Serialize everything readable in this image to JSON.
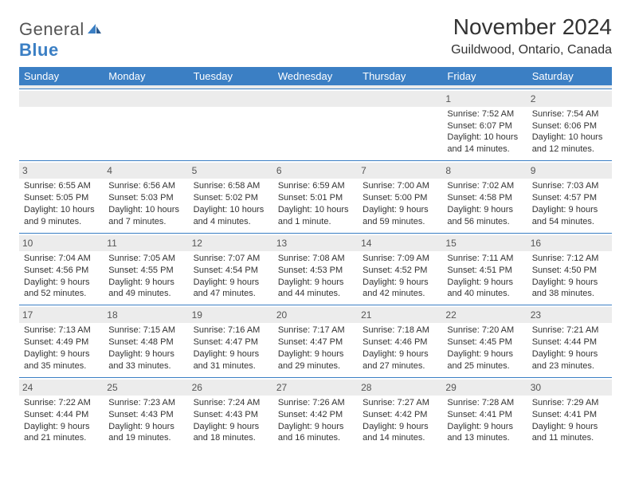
{
  "logo": {
    "general": "General",
    "blue": "Blue"
  },
  "title": "November 2024",
  "location": "Guildwood, Ontario, Canada",
  "colors": {
    "header_bg": "#3b7fc4",
    "header_text": "#ffffff",
    "daynum_bg": "#ececec",
    "border": "#3b7fc4",
    "text": "#333333",
    "background": "#ffffff"
  },
  "dayHeaders": [
    "Sunday",
    "Monday",
    "Tuesday",
    "Wednesday",
    "Thursday",
    "Friday",
    "Saturday"
  ],
  "weeks": [
    [
      null,
      null,
      null,
      null,
      null,
      {
        "n": "1",
        "sr": "7:52 AM",
        "ss": "6:07 PM",
        "dl": "10 hours and 14 minutes."
      },
      {
        "n": "2",
        "sr": "7:54 AM",
        "ss": "6:06 PM",
        "dl": "10 hours and 12 minutes."
      }
    ],
    [
      {
        "n": "3",
        "sr": "6:55 AM",
        "ss": "5:05 PM",
        "dl": "10 hours and 9 minutes."
      },
      {
        "n": "4",
        "sr": "6:56 AM",
        "ss": "5:03 PM",
        "dl": "10 hours and 7 minutes."
      },
      {
        "n": "5",
        "sr": "6:58 AM",
        "ss": "5:02 PM",
        "dl": "10 hours and 4 minutes."
      },
      {
        "n": "6",
        "sr": "6:59 AM",
        "ss": "5:01 PM",
        "dl": "10 hours and 1 minute."
      },
      {
        "n": "7",
        "sr": "7:00 AM",
        "ss": "5:00 PM",
        "dl": "9 hours and 59 minutes."
      },
      {
        "n": "8",
        "sr": "7:02 AM",
        "ss": "4:58 PM",
        "dl": "9 hours and 56 minutes."
      },
      {
        "n": "9",
        "sr": "7:03 AM",
        "ss": "4:57 PM",
        "dl": "9 hours and 54 minutes."
      }
    ],
    [
      {
        "n": "10",
        "sr": "7:04 AM",
        "ss": "4:56 PM",
        "dl": "9 hours and 52 minutes."
      },
      {
        "n": "11",
        "sr": "7:05 AM",
        "ss": "4:55 PM",
        "dl": "9 hours and 49 minutes."
      },
      {
        "n": "12",
        "sr": "7:07 AM",
        "ss": "4:54 PM",
        "dl": "9 hours and 47 minutes."
      },
      {
        "n": "13",
        "sr": "7:08 AM",
        "ss": "4:53 PM",
        "dl": "9 hours and 44 minutes."
      },
      {
        "n": "14",
        "sr": "7:09 AM",
        "ss": "4:52 PM",
        "dl": "9 hours and 42 minutes."
      },
      {
        "n": "15",
        "sr": "7:11 AM",
        "ss": "4:51 PM",
        "dl": "9 hours and 40 minutes."
      },
      {
        "n": "16",
        "sr": "7:12 AM",
        "ss": "4:50 PM",
        "dl": "9 hours and 38 minutes."
      }
    ],
    [
      {
        "n": "17",
        "sr": "7:13 AM",
        "ss": "4:49 PM",
        "dl": "9 hours and 35 minutes."
      },
      {
        "n": "18",
        "sr": "7:15 AM",
        "ss": "4:48 PM",
        "dl": "9 hours and 33 minutes."
      },
      {
        "n": "19",
        "sr": "7:16 AM",
        "ss": "4:47 PM",
        "dl": "9 hours and 31 minutes."
      },
      {
        "n": "20",
        "sr": "7:17 AM",
        "ss": "4:47 PM",
        "dl": "9 hours and 29 minutes."
      },
      {
        "n": "21",
        "sr": "7:18 AM",
        "ss": "4:46 PM",
        "dl": "9 hours and 27 minutes."
      },
      {
        "n": "22",
        "sr": "7:20 AM",
        "ss": "4:45 PM",
        "dl": "9 hours and 25 minutes."
      },
      {
        "n": "23",
        "sr": "7:21 AM",
        "ss": "4:44 PM",
        "dl": "9 hours and 23 minutes."
      }
    ],
    [
      {
        "n": "24",
        "sr": "7:22 AM",
        "ss": "4:44 PM",
        "dl": "9 hours and 21 minutes."
      },
      {
        "n": "25",
        "sr": "7:23 AM",
        "ss": "4:43 PM",
        "dl": "9 hours and 19 minutes."
      },
      {
        "n": "26",
        "sr": "7:24 AM",
        "ss": "4:43 PM",
        "dl": "9 hours and 18 minutes."
      },
      {
        "n": "27",
        "sr": "7:26 AM",
        "ss": "4:42 PM",
        "dl": "9 hours and 16 minutes."
      },
      {
        "n": "28",
        "sr": "7:27 AM",
        "ss": "4:42 PM",
        "dl": "9 hours and 14 minutes."
      },
      {
        "n": "29",
        "sr": "7:28 AM",
        "ss": "4:41 PM",
        "dl": "9 hours and 13 minutes."
      },
      {
        "n": "30",
        "sr": "7:29 AM",
        "ss": "4:41 PM",
        "dl": "9 hours and 11 minutes."
      }
    ]
  ],
  "labels": {
    "sunrise": "Sunrise:",
    "sunset": "Sunset:",
    "daylight": "Daylight:"
  }
}
